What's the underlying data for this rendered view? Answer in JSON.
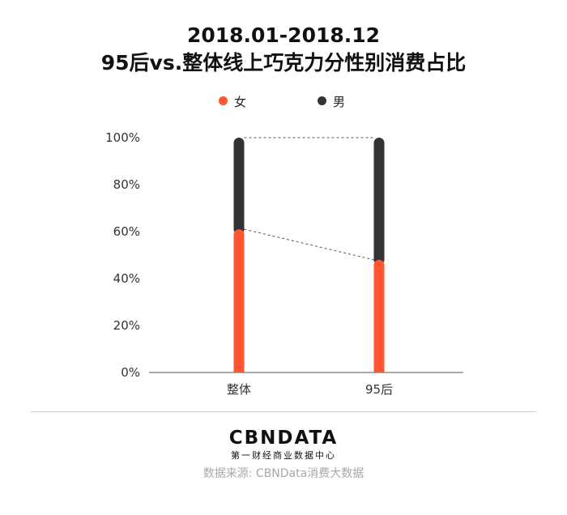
{
  "title_line1": "2018.01-2018.12",
  "title_line2": "95后vs.整体线上巧克力分性别消费占比",
  "legend": [
    {
      "label": "女",
      "color": "#ff5532"
    },
    {
      "label": "男",
      "color": "#333333"
    }
  ],
  "chart_data": {
    "type": "bar",
    "stacked": true,
    "categories": [
      "整体",
      "95后"
    ],
    "series": [
      {
        "name": "女",
        "values": [
          61,
          48
        ],
        "color": "#ff5532"
      },
      {
        "name": "男",
        "values": [
          39,
          52
        ],
        "color": "#333333"
      }
    ],
    "yticks": [
      "0%",
      "20%",
      "40%",
      "60%",
      "80%",
      "100%"
    ],
    "ylim": [
      0,
      100
    ],
    "connector_lines": true,
    "legend_position": "top-center"
  },
  "brand": {
    "logo": "CBNDATA",
    "subtitle": "第一财经商业数据中心"
  },
  "source": "数据来源: CBNData消费大数据"
}
